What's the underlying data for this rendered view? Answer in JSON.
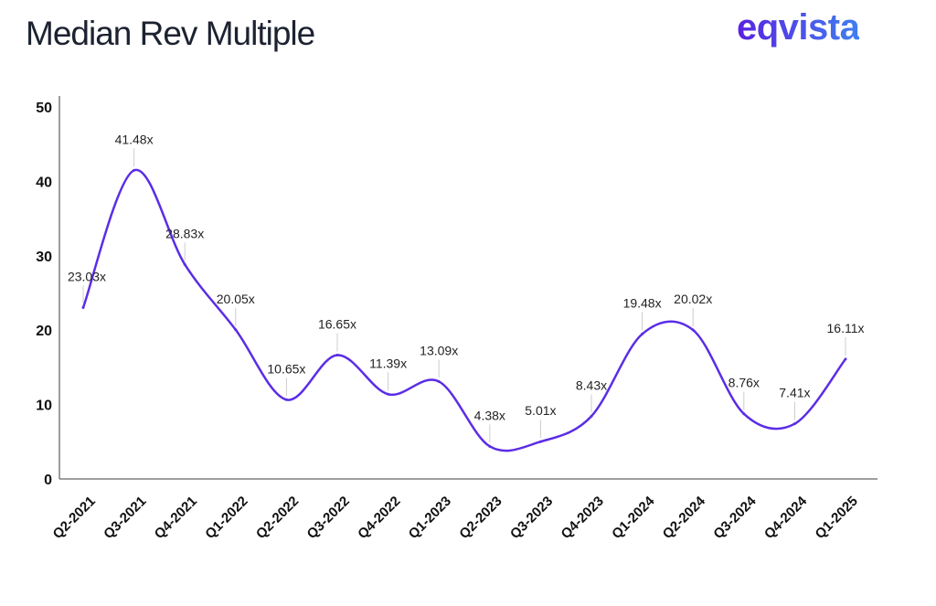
{
  "header": {
    "title": "Median Rev Multiple",
    "logo": "eqvista"
  },
  "chart_data": {
    "type": "line",
    "title": "Median Rev Multiple",
    "xlabel": "",
    "ylabel": "",
    "categories": [
      "Q2-2021",
      "Q3-2021",
      "Q4-2021",
      "Q1-2022",
      "Q2-2022",
      "Q3-2022",
      "Q4-2022",
      "Q1-2023",
      "Q2-2023",
      "Q3-2023",
      "Q4-2023",
      "Q1-2024",
      "Q2-2024",
      "Q3-2024",
      "Q4-2024",
      "Q1-2025"
    ],
    "values": [
      23.03,
      41.48,
      28.83,
      20.05,
      10.65,
      16.65,
      11.39,
      13.09,
      4.38,
      5.01,
      8.43,
      19.48,
      20.02,
      8.76,
      7.41,
      16.11
    ],
    "data_labels": [
      "23.03x",
      "41.48x",
      "28.83x",
      "20.05x",
      "10.65x",
      "16.65x",
      "11.39x",
      "13.09x",
      "4.38x",
      "5.01x",
      "8.43x",
      "19.48x",
      "20.02x",
      "8.76x",
      "7.41x",
      "16.11x"
    ],
    "ylim": [
      0,
      50
    ],
    "yticks": [
      0,
      10,
      20,
      30,
      40,
      50
    ],
    "smooth": true,
    "grid": false,
    "line_color": "#5b2de6"
  }
}
